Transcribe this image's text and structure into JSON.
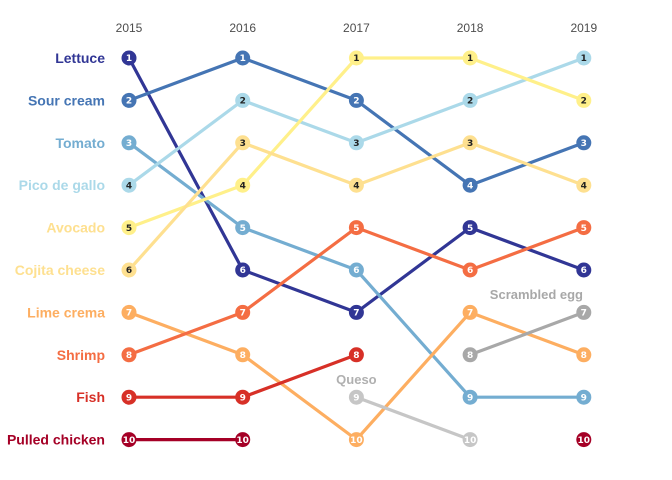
{
  "chart_data": {
    "type": "line",
    "subtype": "bump",
    "x": [
      "2015",
      "2016",
      "2017",
      "2018",
      "2019"
    ],
    "y_reversed": true,
    "ylim": [
      1,
      10
    ],
    "grid": false,
    "legend": "none",
    "row_labels": [
      {
        "rank": 1,
        "text": "Lettuce",
        "color": "#313695"
      },
      {
        "rank": 2,
        "text": "Sour cream",
        "color": "#4575b4"
      },
      {
        "rank": 3,
        "text": "Tomato",
        "color": "#74add1"
      },
      {
        "rank": 4,
        "text": "Pico de gallo",
        "color": "#abd9e9"
      },
      {
        "rank": 5,
        "text": "Avocado",
        "color": "#fee090"
      },
      {
        "rank": 6,
        "text": "Cojita cheese",
        "color": "#fee090"
      },
      {
        "rank": 7,
        "text": "Lime crema",
        "color": "#fdae61"
      },
      {
        "rank": 8,
        "text": "Shrimp",
        "color": "#f46d43"
      },
      {
        "rank": 9,
        "text": "Fish",
        "color": "#d73027"
      },
      {
        "rank": 10,
        "text": "Pulled chicken",
        "color": "#a50026"
      }
    ],
    "series": [
      {
        "name": "Lettuce",
        "color": "#313695",
        "values": [
          1,
          6,
          7,
          5,
          6
        ]
      },
      {
        "name": "Sour cream",
        "color": "#4575b4",
        "values": [
          2,
          1,
          2,
          4,
          3
        ]
      },
      {
        "name": "Tomato",
        "color": "#74add1",
        "values": [
          3,
          5,
          6,
          9,
          9
        ]
      },
      {
        "name": "Pico de gallo",
        "color": "#abd9e9",
        "values": [
          4,
          2,
          3,
          2,
          1
        ]
      },
      {
        "name": "Avocado",
        "color": "#fff08a",
        "values": [
          5,
          4,
          1,
          1,
          2
        ]
      },
      {
        "name": "Cojita cheese",
        "color": "#fee090",
        "values": [
          6,
          3,
          4,
          3,
          4
        ]
      },
      {
        "name": "Lime crema",
        "color": "#fdae61",
        "values": [
          7,
          8,
          10,
          7,
          8
        ]
      },
      {
        "name": "Shrimp",
        "color": "#f46d43",
        "values": [
          8,
          7,
          5,
          6,
          5
        ]
      },
      {
        "name": "Fish",
        "color": "#d73027",
        "values": [
          9,
          9,
          8,
          null,
          null
        ]
      },
      {
        "name": "Pulled chicken",
        "color": "#a50026",
        "values": [
          10,
          10,
          null,
          null,
          10
        ]
      },
      {
        "name": "Queso",
        "color": "#c6c6c6",
        "values": [
          null,
          null,
          9,
          10,
          null
        ]
      },
      {
        "name": "Scrambled egg",
        "color": "#a8a8a8",
        "values": [
          null,
          null,
          null,
          8,
          7
        ]
      }
    ],
    "annotations": [
      {
        "text": "Queso",
        "color": "#b0b0b0"
      },
      {
        "text": "Scrambled egg",
        "color": "#a8a8a8"
      }
    ],
    "light_point_colors": [
      "#abd9e9",
      "#fff08a",
      "#fee090"
    ]
  }
}
